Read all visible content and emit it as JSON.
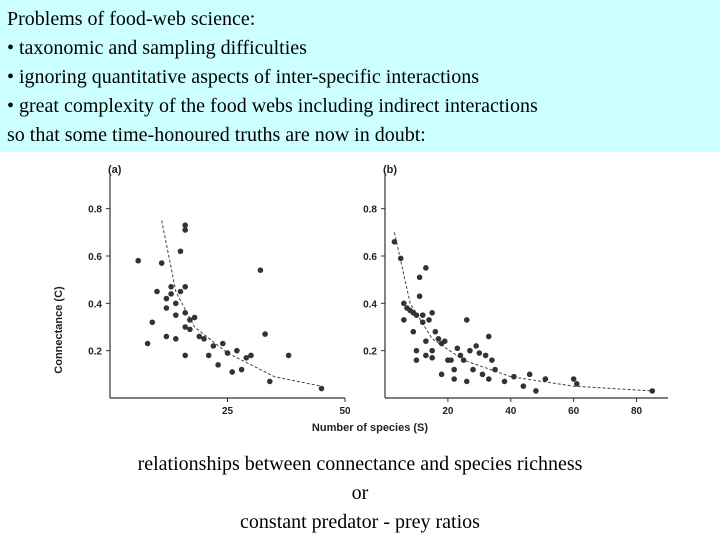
{
  "header": {
    "lines": [
      "Problems of food-web science:",
      "• taxonomic and sampling difficulties",
      "• ignoring quantitative aspects of inter-specific interactions",
      "• great complexity of the food webs including indirect interactions",
      "so that some time-honoured truths are now in doubt:"
    ],
    "background_color": "#ccffff"
  },
  "caption": {
    "line1": "relationships between connectance and species richness",
    "line2": "or",
    "line3": "constant predator - prey ratios"
  },
  "figure": {
    "ylabel": "Connectance (C)",
    "xlabel": "Number of species (S)"
  },
  "chart_data": [
    {
      "type": "scatter",
      "panel_label": "(a)",
      "xlim": [
        0,
        50
      ],
      "ylim": [
        0,
        0.9
      ],
      "xticks": [
        "25",
        "50"
      ],
      "yticks": [
        "0.8",
        "0.6",
        "0.4",
        "0.2"
      ],
      "ylabel": "Connectance (C)",
      "xlabel": "",
      "points": [
        [
          6,
          0.58
        ],
        [
          10,
          0.45
        ],
        [
          11,
          0.57
        ],
        [
          12,
          0.42
        ],
        [
          12,
          0.38
        ],
        [
          13,
          0.47
        ],
        [
          13,
          0.44
        ],
        [
          14,
          0.4
        ],
        [
          14,
          0.35
        ],
        [
          15,
          0.62
        ],
        [
          15,
          0.45
        ],
        [
          16,
          0.71
        ],
        [
          16,
          0.73
        ],
        [
          16,
          0.47
        ],
        [
          16,
          0.36
        ],
        [
          16,
          0.3
        ],
        [
          8,
          0.23
        ],
        [
          9,
          0.32
        ],
        [
          12,
          0.26
        ],
        [
          14,
          0.25
        ],
        [
          16,
          0.18
        ],
        [
          17,
          0.33
        ],
        [
          17,
          0.29
        ],
        [
          18,
          0.34
        ],
        [
          19,
          0.26
        ],
        [
          20,
          0.25
        ],
        [
          21,
          0.18
        ],
        [
          22,
          0.22
        ],
        [
          23,
          0.14
        ],
        [
          24,
          0.23
        ],
        [
          25,
          0.19
        ],
        [
          26,
          0.11
        ],
        [
          27,
          0.2
        ],
        [
          28,
          0.12
        ],
        [
          29,
          0.17
        ],
        [
          30,
          0.18
        ],
        [
          32,
          0.54
        ],
        [
          33,
          0.27
        ],
        [
          34,
          0.07
        ],
        [
          38,
          0.18
        ],
        [
          45,
          0.04
        ]
      ],
      "fit": [
        [
          11,
          0.75
        ],
        [
          14,
          0.45
        ],
        [
          18,
          0.3
        ],
        [
          25,
          0.19
        ],
        [
          35,
          0.09
        ],
        [
          45,
          0.05
        ]
      ]
    },
    {
      "type": "scatter",
      "panel_label": "(b)",
      "xlim": [
        0,
        90
      ],
      "ylim": [
        0,
        0.9
      ],
      "xticks": [
        "20",
        "40",
        "60",
        "80"
      ],
      "yticks": [
        "0.8",
        "0.6",
        "0.4",
        "0.2"
      ],
      "ylabel": "",
      "xlabel": "Number of species (S)",
      "points": [
        [
          3,
          0.66
        ],
        [
          5,
          0.59
        ],
        [
          6,
          0.4
        ],
        [
          6,
          0.33
        ],
        [
          7,
          0.38
        ],
        [
          8,
          0.37
        ],
        [
          9,
          0.36
        ],
        [
          9,
          0.28
        ],
        [
          10,
          0.35
        ],
        [
          10,
          0.2
        ],
        [
          10,
          0.16
        ],
        [
          11,
          0.51
        ],
        [
          11,
          0.43
        ],
        [
          12,
          0.32
        ],
        [
          12,
          0.35
        ],
        [
          13,
          0.55
        ],
        [
          13,
          0.24
        ],
        [
          13,
          0.18
        ],
        [
          14,
          0.33
        ],
        [
          15,
          0.36
        ],
        [
          15,
          0.2
        ],
        [
          15,
          0.17
        ],
        [
          16,
          0.28
        ],
        [
          17,
          0.25
        ],
        [
          18,
          0.23
        ],
        [
          18,
          0.1
        ],
        [
          19,
          0.24
        ],
        [
          20,
          0.16
        ],
        [
          21,
          0.16
        ],
        [
          22,
          0.12
        ],
        [
          22,
          0.08
        ],
        [
          23,
          0.21
        ],
        [
          24,
          0.18
        ],
        [
          25,
          0.16
        ],
        [
          26,
          0.33
        ],
        [
          26,
          0.07
        ],
        [
          27,
          0.2
        ],
        [
          28,
          0.12
        ],
        [
          29,
          0.22
        ],
        [
          30,
          0.19
        ],
        [
          31,
          0.1
        ],
        [
          32,
          0.18
        ],
        [
          33,
          0.26
        ],
        [
          33,
          0.08
        ],
        [
          34,
          0.16
        ],
        [
          35,
          0.12
        ],
        [
          38,
          0.07
        ],
        [
          41,
          0.09
        ],
        [
          44,
          0.05
        ],
        [
          46,
          0.1
        ],
        [
          48,
          0.03
        ],
        [
          51,
          0.08
        ],
        [
          60,
          0.08
        ],
        [
          61,
          0.06
        ],
        [
          85,
          0.03
        ]
      ],
      "fit": [
        [
          3,
          0.7
        ],
        [
          8,
          0.4
        ],
        [
          15,
          0.25
        ],
        [
          25,
          0.16
        ],
        [
          40,
          0.09
        ],
        [
          60,
          0.05
        ],
        [
          85,
          0.03
        ]
      ]
    }
  ]
}
